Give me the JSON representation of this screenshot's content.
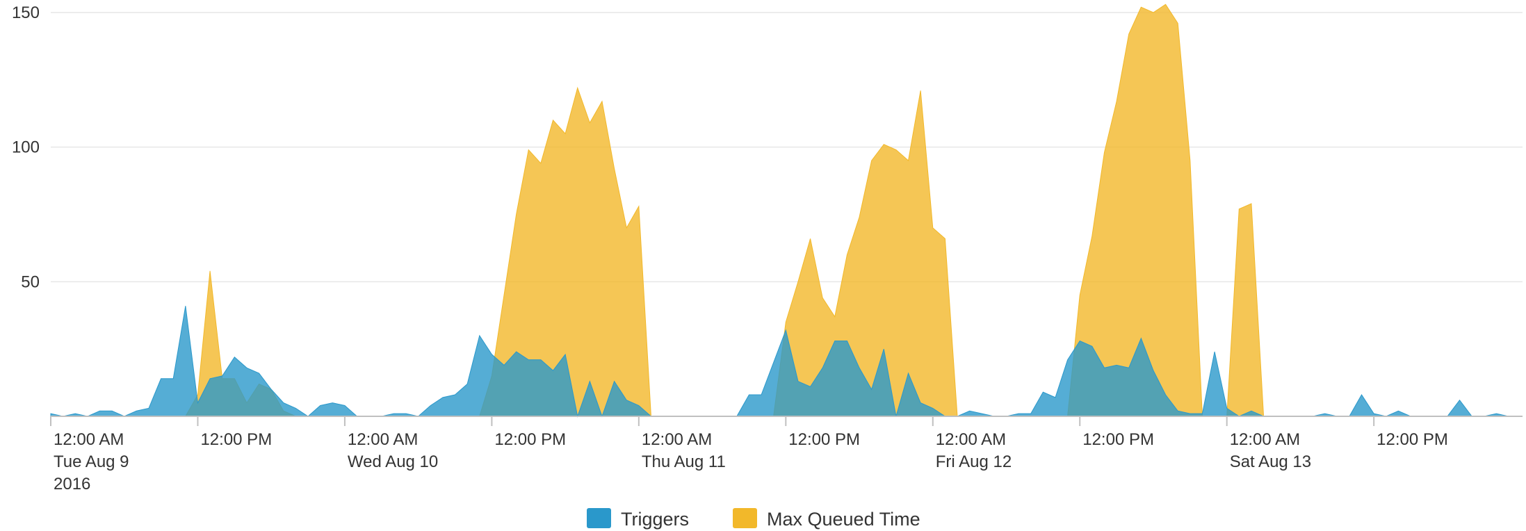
{
  "chart_data": {
    "type": "area",
    "x": [
      0,
      1,
      2,
      3,
      4,
      5,
      6,
      7,
      8,
      9,
      10,
      11,
      12,
      13,
      14,
      15,
      16,
      17,
      18,
      19,
      20,
      21,
      22,
      23,
      24,
      25,
      26,
      27,
      28,
      29,
      30,
      31,
      32,
      33,
      34,
      35,
      36,
      37,
      38,
      39,
      40,
      41,
      42,
      43,
      44,
      45,
      46,
      47,
      48,
      49,
      50,
      51,
      52,
      53,
      54,
      55,
      56,
      57,
      58,
      59,
      60,
      61,
      62,
      63,
      64,
      65,
      66,
      67,
      68,
      69,
      70,
      71,
      72,
      73,
      74,
      75,
      76,
      77,
      78,
      79,
      80,
      81,
      82,
      83,
      84,
      85,
      86,
      87,
      88,
      89,
      90,
      91,
      92,
      93,
      94,
      95,
      96,
      97,
      98,
      99,
      100,
      101,
      102,
      103,
      104,
      105,
      106,
      107,
      108,
      109,
      110,
      111,
      112,
      113,
      114,
      115,
      116,
      117,
      118,
      119
    ],
    "series": [
      {
        "name": "Max Queued Time",
        "color": "#f2b82a",
        "values": [
          0,
          0,
          0,
          0,
          0,
          0,
          0,
          0,
          0,
          0,
          0,
          0,
          8,
          54,
          14,
          14,
          5,
          12,
          10,
          2,
          0,
          0,
          0,
          0,
          0,
          0,
          0,
          0,
          0,
          0,
          0,
          0,
          0,
          0,
          0,
          0,
          15,
          45,
          75,
          99,
          94,
          110,
          105,
          122,
          109,
          117,
          92,
          70,
          78,
          0,
          0,
          0,
          0,
          0,
          0,
          0,
          0,
          0,
          0,
          0,
          35,
          50,
          66,
          44,
          37,
          60,
          74,
          95,
          101,
          99,
          95,
          121,
          70,
          66,
          0,
          0,
          0,
          0,
          0,
          0,
          0,
          0,
          0,
          0,
          45,
          67,
          98,
          117,
          142,
          152,
          150,
          153,
          146,
          95,
          0,
          0,
          0,
          77,
          79,
          0,
          0,
          0,
          0,
          0,
          0,
          0,
          0,
          0,
          0,
          0,
          0,
          0,
          0,
          0,
          0,
          0,
          0,
          0,
          0,
          0
        ]
      },
      {
        "name": "Triggers",
        "color": "#2a98cb",
        "values": [
          1,
          0,
          1,
          0,
          2,
          2,
          0,
          2,
          3,
          14,
          14,
          41,
          5,
          14,
          15,
          22,
          18,
          16,
          10,
          5,
          3,
          0,
          4,
          5,
          4,
          0,
          0,
          0,
          1,
          1,
          0,
          4,
          7,
          8,
          12,
          30,
          23,
          19,
          24,
          21,
          21,
          17,
          23,
          0,
          13,
          0,
          13,
          6,
          4,
          0,
          0,
          0,
          0,
          0,
          0,
          0,
          0,
          8,
          8,
          20,
          32,
          13,
          11,
          18,
          28,
          28,
          18,
          10,
          25,
          0,
          16,
          5,
          3,
          0,
          0,
          2,
          1,
          0,
          0,
          1,
          1,
          9,
          7,
          21,
          28,
          26,
          18,
          19,
          18,
          29,
          17,
          8,
          2,
          1,
          1,
          24,
          3,
          0,
          2,
          0,
          0,
          0,
          0,
          0,
          1,
          0,
          0,
          8,
          1,
          0,
          2,
          0,
          0,
          0,
          0,
          6,
          0,
          0,
          1,
          0
        ]
      }
    ],
    "xlim": [
      0,
      119
    ],
    "xticks": [
      {
        "value": 0,
        "label": [
          "12:00 AM",
          "Tue Aug 9",
          "2016"
        ]
      },
      {
        "value": 12,
        "label": [
          "12:00 PM"
        ]
      },
      {
        "value": 24,
        "label": [
          "12:00 AM",
          "Wed Aug 10"
        ]
      },
      {
        "value": 36,
        "label": [
          "12:00 PM"
        ]
      },
      {
        "value": 48,
        "label": [
          "12:00 AM",
          "Thu Aug 11"
        ]
      },
      {
        "value": 60,
        "label": [
          "12:00 PM"
        ]
      },
      {
        "value": 72,
        "label": [
          "12:00 AM",
          "Fri Aug 12"
        ]
      },
      {
        "value": 84,
        "label": [
          "12:00 PM"
        ]
      },
      {
        "value": 96,
        "label": [
          "12:00 AM",
          "Sat Aug 13"
        ]
      },
      {
        "value": 108,
        "label": [
          "12:00 PM"
        ]
      }
    ],
    "ylim": [
      0,
      150
    ],
    "yticks": [
      50,
      100,
      150
    ],
    "grid": true,
    "legend": "bottom"
  }
}
